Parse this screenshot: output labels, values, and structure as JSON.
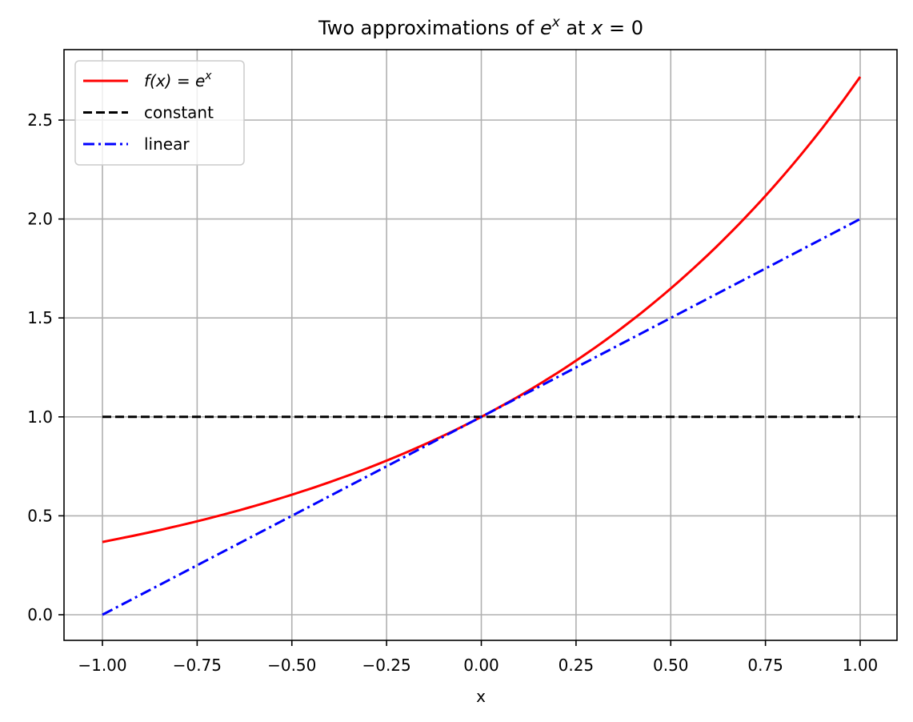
{
  "chart_data": {
    "type": "line",
    "title": "Two approximations of e^x at x = 0",
    "title_parts": {
      "prefix": "Two approximations of ",
      "base": "e",
      "exp": "x",
      "middle": " at ",
      "var": "x",
      "suffix": " = 0"
    },
    "xlabel": "x",
    "ylabel": "",
    "xlim": [
      -1.1,
      1.1
    ],
    "ylim": [
      -0.135,
      2.855
    ],
    "grid": true,
    "legend_position": "upper left",
    "x_ticks": [
      -1.0,
      -0.75,
      -0.5,
      -0.25,
      0.0,
      0.25,
      0.5,
      0.75,
      1.0
    ],
    "x_tick_labels": [
      "−1.00",
      "−0.75",
      "−0.50",
      "−0.25",
      "0.00",
      "0.25",
      "0.50",
      "0.75",
      "1.00"
    ],
    "y_ticks": [
      0.0,
      0.5,
      1.0,
      1.5,
      2.0,
      2.5
    ],
    "y_tick_labels": [
      "0.0",
      "0.5",
      "1.0",
      "1.5",
      "2.0",
      "2.5"
    ],
    "x": [
      -1.0,
      -0.75,
      -0.5,
      -0.25,
      0.0,
      0.25,
      0.5,
      0.75,
      1.0
    ],
    "series": [
      {
        "name": "f(x) = e^x",
        "legend_label": "f(x) = e",
        "legend_sup": "x",
        "color": "#ff0000",
        "style": "solid",
        "values": [
          0.368,
          0.472,
          0.607,
          0.779,
          1.0,
          1.284,
          1.649,
          2.117,
          2.718
        ]
      },
      {
        "name": "constant",
        "legend_label": "constant",
        "color": "#000000",
        "style": "dashed",
        "values": [
          1.0,
          1.0,
          1.0,
          1.0,
          1.0,
          1.0,
          1.0,
          1.0,
          1.0
        ]
      },
      {
        "name": "linear",
        "legend_label": "linear",
        "color": "#0000ff",
        "style": "dashdot",
        "values": [
          0.0,
          0.25,
          0.5,
          0.75,
          1.0,
          1.25,
          1.5,
          1.75,
          2.0
        ]
      }
    ]
  }
}
